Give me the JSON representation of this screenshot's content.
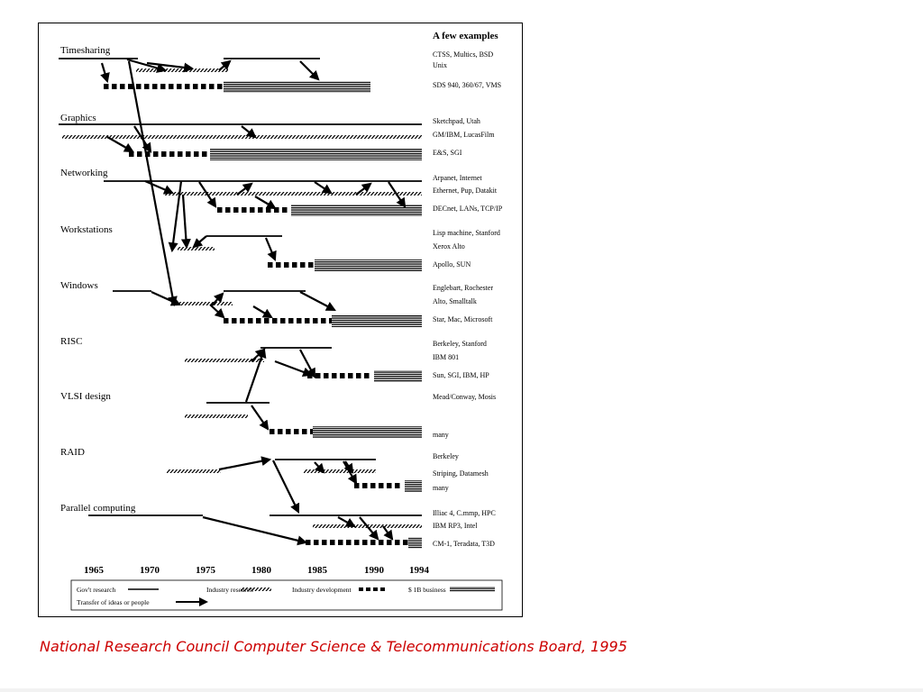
{
  "header": "A few examples",
  "caption": "National Research Council Computer Science & Telecommunications Board, 1995",
  "colors": {
    "caption": "#cc0000",
    "ink": "#000000"
  },
  "sections": [
    {
      "title": "Timesharing",
      "examples": [
        "CTSS, Multics, BSD",
        "Unix",
        "SDS 940, 360/67, VMS"
      ]
    },
    {
      "title": "Graphics",
      "examples": [
        "Sketchpad, Utah",
        "GM/IBM, LucasFilm",
        "E&S, SGI"
      ]
    },
    {
      "title": "Networking",
      "examples": [
        "Arpanet, Internet",
        "Ethernet, Pup, Datakit",
        "DECnet, LANs, TCP/IP"
      ]
    },
    {
      "title": "Workstations",
      "examples": [
        "Lisp machine, Stanford",
        "Xerox Alto",
        "Apollo, SUN"
      ]
    },
    {
      "title": "Windows",
      "examples": [
        "Englebart, Rochester",
        "Alto, Smalltalk",
        "Star, Mac, Microsoft"
      ]
    },
    {
      "title": "RISC",
      "examples": [
        "Berkeley, Stanford",
        "IBM 801",
        "Sun, SGI, IBM, HP"
      ]
    },
    {
      "title": "VLSI design",
      "examples": [
        "Mead/Conway, Mosis",
        "many"
      ]
    },
    {
      "title": "RAID",
      "examples": [
        "Berkeley",
        "Striping, Datamesh",
        "many"
      ]
    },
    {
      "title": "Parallel computing",
      "examples": [
        "Illiac 4, C.mmp, HPC",
        "IBM RP3, Intel",
        "CM-1, Teradata, T3D"
      ]
    }
  ],
  "years": [
    "1965",
    "1970",
    "1975",
    "1980",
    "1985",
    "1990",
    "1994"
  ],
  "legend": {
    "gov": "Gov't research",
    "industry_research": "Industry research",
    "industry_dev": "Industry development",
    "business": "$ 1B business",
    "transfer": "Transfer of ideas or people"
  }
}
